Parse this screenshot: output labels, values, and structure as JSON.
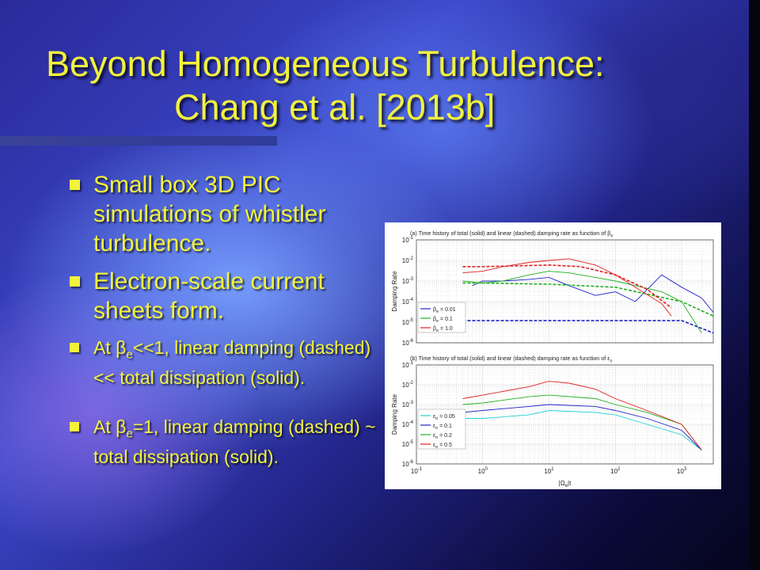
{
  "slide": {
    "title_line1": "Beyond Homogeneous Turbulence:",
    "title_line2": "Chang et al. [2013b]",
    "bullets": [
      {
        "text": "Small box 3D PIC simulations of whistler turbulence."
      },
      {
        "text": "Electron-scale current sheets form."
      },
      {
        "pre": "At β",
        "sub": "e",
        "post": "<<1, linear damping (dashed) << total dissipation (solid)."
      },
      {
        "pre": "At β",
        "sub": "e",
        "post": "=1, linear damping (dashed) ~ total dissipation (solid)."
      }
    ]
  },
  "figure": {
    "panel_a_title": "(a) Time history of total (solid) and linear (dashed) damping rate as function of β",
    "panel_a_title_sub": "e",
    "panel_b_title": "(b) Time history of total (solid) and linear (dashed) damping rate as function of ε",
    "panel_b_title_sub": "o",
    "ylabel": "Damping Rate",
    "xlabel": "|Ω",
    "xlabel_sub": "e",
    "xlabel_post": "|t",
    "yticks_base": "10",
    "yticks_exp": [
      "-1",
      "-2",
      "-3",
      "-4",
      "-5",
      "-6"
    ],
    "xticks_exp": [
      "-1",
      "0",
      "1",
      "2",
      "3"
    ],
    "legend_a": [
      {
        "label": "β",
        "sub": "e",
        "value": " = 0.01",
        "color": "#2020cc"
      },
      {
        "label": "β",
        "sub": "e",
        "value": " = 0.1",
        "color": "#20b020"
      },
      {
        "label": "β",
        "sub": "e",
        "value": " = 1.0",
        "color": "#e02020"
      }
    ],
    "legend_b": [
      {
        "label": "ε",
        "sub": "o",
        "value": " = 0.05",
        "color": "#20d0d0"
      },
      {
        "label": "ε",
        "sub": "o",
        "value": " = 0.1",
        "color": "#2020cc"
      },
      {
        "label": "ε",
        "sub": "o",
        "value": " = 0.2",
        "color": "#20b020"
      },
      {
        "label": "ε",
        "sub": "o",
        "value": " = 0.5",
        "color": "#e02020"
      }
    ]
  },
  "chart_data": [
    {
      "type": "line",
      "title": "(a) Time history of total (solid) and linear (dashed) damping rate as function of βe",
      "xlabel": "|Ωe|t",
      "ylabel": "Damping Rate",
      "x_scale": "log",
      "y_scale": "log",
      "xlim": [
        0.1,
        3000
      ],
      "ylim": [
        1e-06,
        0.1
      ],
      "grid": true,
      "legend_position": "left",
      "series": [
        {
          "name": "βe = 0.01",
          "style": "solid",
          "x": [
            0.7,
            1,
            2,
            5,
            10,
            20,
            50,
            100,
            200,
            500,
            1000,
            2000,
            3000
          ],
          "y": [
            0.0006,
            0.001,
            0.001,
            0.0012,
            0.0015,
            0.0006,
            0.0002,
            0.0003,
            0.0001,
            0.002,
            0.0005,
            0.00015,
            3e-05
          ]
        },
        {
          "name": "βe = 0.01 linear",
          "style": "dashed",
          "x": [
            0.5,
            1,
            10,
            100,
            1000,
            3000
          ],
          "y": [
            1.2e-05,
            1.2e-05,
            1.2e-05,
            1.2e-05,
            1.2e-05,
            3e-06
          ]
        },
        {
          "name": "βe = 0.1",
          "style": "solid",
          "x": [
            0.5,
            1,
            2,
            5,
            10,
            20,
            50,
            100,
            200,
            500,
            1000,
            2000
          ],
          "y": [
            0.001,
            0.0008,
            0.001,
            0.002,
            0.003,
            0.0025,
            0.0015,
            0.001,
            0.0006,
            0.0003,
            0.0001,
            3e-06
          ]
        },
        {
          "name": "βe = 0.1 linear",
          "style": "dashed",
          "x": [
            0.5,
            1,
            10,
            100,
            1000,
            3000
          ],
          "y": [
            0.0008,
            0.0008,
            0.0007,
            0.0005,
            0.0001,
            2e-05
          ]
        },
        {
          "name": "βe = 1.0",
          "style": "solid",
          "x": [
            0.5,
            1,
            2,
            5,
            10,
            20,
            50,
            100,
            200,
            500,
            700
          ],
          "y": [
            0.0025,
            0.003,
            0.005,
            0.008,
            0.01,
            0.012,
            0.006,
            0.002,
            0.0005,
            8e-05,
            2e-05
          ]
        },
        {
          "name": "βe = 1.0 linear",
          "style": "dashed",
          "x": [
            0.5,
            1,
            10,
            30,
            100,
            300,
            700
          ],
          "y": [
            0.005,
            0.005,
            0.006,
            0.005,
            0.002,
            0.0004,
            5e-05
          ]
        }
      ]
    },
    {
      "type": "line",
      "title": "(b) Time history of total (solid) and linear (dashed) damping rate as function of εo",
      "xlabel": "|Ωe|t",
      "ylabel": "Damping Rate",
      "x_scale": "log",
      "y_scale": "log",
      "xlim": [
        0.1,
        3000
      ],
      "ylim": [
        1e-06,
        0.1
      ],
      "grid": true,
      "legend_position": "left",
      "series": [
        {
          "name": "εo = 0.05",
          "style": "solid",
          "x": [
            0.5,
            1,
            5,
            10,
            50,
            100,
            300,
            1000,
            2000
          ],
          "y": [
            0.0002,
            0.0002,
            0.0003,
            0.0005,
            0.0004,
            0.0003,
            0.0001,
            3e-05,
            5e-06
          ]
        },
        {
          "name": "εo = 0.1",
          "style": "solid",
          "x": [
            0.5,
            1,
            5,
            10,
            50,
            100,
            300,
            1000,
            2000
          ],
          "y": [
            0.0004,
            0.0005,
            0.0008,
            0.001,
            0.0008,
            0.0005,
            0.0002,
            5e-05,
            5e-06
          ]
        },
        {
          "name": "εo = 0.2",
          "style": "solid",
          "x": [
            0.5,
            1,
            5,
            10,
            50,
            100,
            300,
            1000,
            2000
          ],
          "y": [
            0.001,
            0.0012,
            0.0025,
            0.003,
            0.002,
            0.001,
            0.0004,
            0.0001,
            5e-06
          ]
        },
        {
          "name": "εo = 0.5",
          "style": "solid",
          "x": [
            0.5,
            1,
            5,
            10,
            20,
            50,
            100,
            300,
            1000,
            2000
          ],
          "y": [
            0.002,
            0.003,
            0.008,
            0.015,
            0.012,
            0.006,
            0.002,
            0.0005,
            0.0001,
            5e-06
          ]
        }
      ]
    }
  ]
}
